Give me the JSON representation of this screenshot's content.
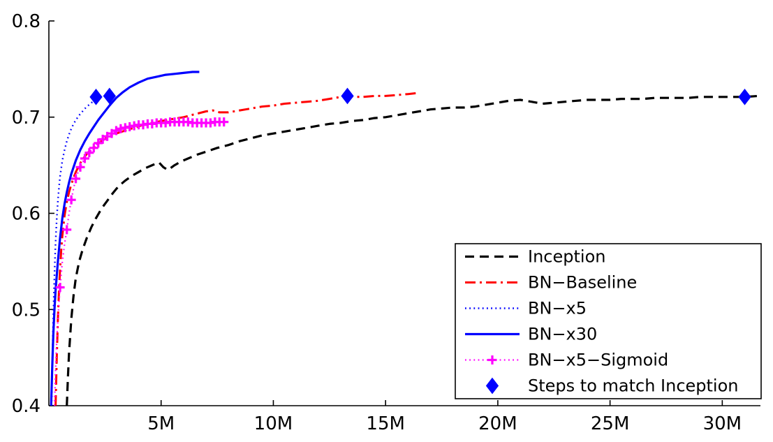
{
  "figure": {
    "background": "#ffffff",
    "text_color": "#000000",
    "axis_color": "#000000"
  },
  "chart_data": {
    "type": "line",
    "title": "",
    "xlabel": "",
    "ylabel": "",
    "xlim": [
      0,
      31.7
    ],
    "ylim": [
      0.4,
      0.8
    ],
    "grid": false,
    "xticks": [
      {
        "value": 5,
        "label": "5M"
      },
      {
        "value": 10,
        "label": "10M"
      },
      {
        "value": 15,
        "label": "15M"
      },
      {
        "value": 20,
        "label": "20M"
      },
      {
        "value": 25,
        "label": "25M"
      },
      {
        "value": 30,
        "label": "30M"
      }
    ],
    "yticks": [
      {
        "value": 0.4,
        "label": "0.4"
      },
      {
        "value": 0.5,
        "label": "0.5"
      },
      {
        "value": 0.6,
        "label": "0.6"
      },
      {
        "value": 0.7,
        "label": "0.7"
      },
      {
        "value": 0.8,
        "label": "0.8"
      }
    ],
    "legend": {
      "position": "bottom-right",
      "border_color": "#000000",
      "background": "#ffffff"
    },
    "series": [
      {
        "name": "Inception",
        "color": "#000000",
        "style": "dashed",
        "line_width": 3.2,
        "marker": null,
        "points": [
          [
            0.8,
            0.4
          ],
          [
            0.85,
            0.43
          ],
          [
            0.9,
            0.455
          ],
          [
            1.0,
            0.49
          ],
          [
            1.1,
            0.515
          ],
          [
            1.2,
            0.533
          ],
          [
            1.35,
            0.55
          ],
          [
            1.5,
            0.562
          ],
          [
            1.7,
            0.575
          ],
          [
            1.9,
            0.586
          ],
          [
            2.1,
            0.595
          ],
          [
            2.35,
            0.605
          ],
          [
            2.6,
            0.613
          ],
          [
            2.85,
            0.621
          ],
          [
            3.1,
            0.628
          ],
          [
            3.4,
            0.634
          ],
          [
            3.7,
            0.639
          ],
          [
            4.0,
            0.643
          ],
          [
            4.3,
            0.647
          ],
          [
            4.6,
            0.65
          ],
          [
            4.9,
            0.653
          ],
          [
            5.1,
            0.648
          ],
          [
            5.3,
            0.645
          ],
          [
            5.6,
            0.65
          ],
          [
            5.9,
            0.654
          ],
          [
            6.2,
            0.657
          ],
          [
            6.6,
            0.661
          ],
          [
            7.0,
            0.664
          ],
          [
            7.5,
            0.668
          ],
          [
            8.0,
            0.671
          ],
          [
            8.5,
            0.675
          ],
          [
            9.0,
            0.678
          ],
          [
            9.5,
            0.681
          ],
          [
            10.0,
            0.683
          ],
          [
            10.5,
            0.685
          ],
          [
            11.0,
            0.687
          ],
          [
            11.5,
            0.689
          ],
          [
            12.0,
            0.691
          ],
          [
            12.5,
            0.693
          ],
          [
            13.0,
            0.694
          ],
          [
            13.5,
            0.696
          ],
          [
            14.0,
            0.697
          ],
          [
            14.5,
            0.699
          ],
          [
            15.0,
            0.7
          ],
          [
            15.5,
            0.702
          ],
          [
            16.0,
            0.704
          ],
          [
            16.5,
            0.706
          ],
          [
            17.0,
            0.708
          ],
          [
            17.5,
            0.709
          ],
          [
            18.0,
            0.71
          ],
          [
            18.5,
            0.71
          ],
          [
            19.0,
            0.711
          ],
          [
            19.5,
            0.713
          ],
          [
            20.0,
            0.715
          ],
          [
            20.5,
            0.717
          ],
          [
            21.0,
            0.718
          ],
          [
            21.5,
            0.716
          ],
          [
            22.0,
            0.714
          ],
          [
            22.5,
            0.715
          ],
          [
            23.0,
            0.716
          ],
          [
            23.5,
            0.717
          ],
          [
            24.0,
            0.718
          ],
          [
            24.5,
            0.718
          ],
          [
            25.0,
            0.718
          ],
          [
            25.5,
            0.719
          ],
          [
            26.0,
            0.719
          ],
          [
            26.5,
            0.719
          ],
          [
            27.0,
            0.72
          ],
          [
            27.5,
            0.72
          ],
          [
            28.0,
            0.72
          ],
          [
            28.5,
            0.72
          ],
          [
            29.0,
            0.721
          ],
          [
            29.5,
            0.721
          ],
          [
            30.0,
            0.721
          ],
          [
            30.5,
            0.721
          ],
          [
            31.0,
            0.721
          ],
          [
            31.6,
            0.722
          ]
        ]
      },
      {
        "name": "BN−Baseline",
        "color": "#ff0000",
        "style": "dashdot",
        "line_width": 3,
        "marker": null,
        "points": [
          [
            0.3,
            0.4
          ],
          [
            0.35,
            0.45
          ],
          [
            0.4,
            0.49
          ],
          [
            0.45,
            0.52
          ],
          [
            0.5,
            0.543
          ],
          [
            0.55,
            0.562
          ],
          [
            0.6,
            0.577
          ],
          [
            0.7,
            0.598
          ],
          [
            0.8,
            0.612
          ],
          [
            0.9,
            0.622
          ],
          [
            1.0,
            0.63
          ],
          [
            1.1,
            0.637
          ],
          [
            1.2,
            0.643
          ],
          [
            1.35,
            0.65
          ],
          [
            1.5,
            0.656
          ],
          [
            1.7,
            0.662
          ],
          [
            1.9,
            0.667
          ],
          [
            2.1,
            0.671
          ],
          [
            2.4,
            0.676
          ],
          [
            2.7,
            0.68
          ],
          [
            3.0,
            0.683
          ],
          [
            3.4,
            0.686
          ],
          [
            3.8,
            0.689
          ],
          [
            4.2,
            0.692
          ],
          [
            4.6,
            0.694
          ],
          [
            5.0,
            0.696
          ],
          [
            5.5,
            0.698
          ],
          [
            6.0,
            0.7
          ],
          [
            6.5,
            0.703
          ],
          [
            7.0,
            0.706
          ],
          [
            7.3,
            0.707
          ],
          [
            7.6,
            0.705
          ],
          [
            8.0,
            0.705
          ],
          [
            8.5,
            0.707
          ],
          [
            9.0,
            0.709
          ],
          [
            9.5,
            0.711
          ],
          [
            10.0,
            0.712
          ],
          [
            10.5,
            0.714
          ],
          [
            11.0,
            0.715
          ],
          [
            11.5,
            0.716
          ],
          [
            12.0,
            0.717
          ],
          [
            12.5,
            0.719
          ],
          [
            13.0,
            0.721
          ],
          [
            13.3,
            0.722
          ],
          [
            13.7,
            0.721
          ],
          [
            14.0,
            0.721
          ],
          [
            14.5,
            0.722
          ],
          [
            15.0,
            0.722
          ],
          [
            15.5,
            0.723
          ],
          [
            16.0,
            0.724
          ],
          [
            16.4,
            0.725
          ]
        ]
      },
      {
        "name": "BN−x5",
        "color": "#0000ff",
        "style": "dotted",
        "line_width": 2.4,
        "marker": null,
        "points": [
          [
            0.12,
            0.4
          ],
          [
            0.15,
            0.44
          ],
          [
            0.18,
            0.475
          ],
          [
            0.22,
            0.515
          ],
          [
            0.26,
            0.545
          ],
          [
            0.3,
            0.57
          ],
          [
            0.35,
            0.595
          ],
          [
            0.4,
            0.613
          ],
          [
            0.45,
            0.627
          ],
          [
            0.5,
            0.639
          ],
          [
            0.6,
            0.655
          ],
          [
            0.7,
            0.666
          ],
          [
            0.8,
            0.675
          ],
          [
            0.9,
            0.682
          ],
          [
            1.0,
            0.688
          ],
          [
            1.1,
            0.693
          ],
          [
            1.2,
            0.697
          ],
          [
            1.35,
            0.702
          ],
          [
            1.5,
            0.706
          ],
          [
            1.65,
            0.71
          ],
          [
            1.8,
            0.713
          ],
          [
            1.95,
            0.716
          ],
          [
            2.1,
            0.719
          ],
          [
            2.2,
            0.721
          ]
        ]
      },
      {
        "name": "BN−x30",
        "color": "#0000ff",
        "style": "solid",
        "line_width": 3.2,
        "marker": null,
        "points": [
          [
            0.1,
            0.4
          ],
          [
            0.15,
            0.44
          ],
          [
            0.2,
            0.475
          ],
          [
            0.25,
            0.5
          ],
          [
            0.3,
            0.52
          ],
          [
            0.4,
            0.55
          ],
          [
            0.5,
            0.575
          ],
          [
            0.6,
            0.595
          ],
          [
            0.7,
            0.61
          ],
          [
            0.8,
            0.622
          ],
          [
            0.9,
            0.632
          ],
          [
            1.0,
            0.641
          ],
          [
            1.2,
            0.655
          ],
          [
            1.4,
            0.666
          ],
          [
            1.6,
            0.675
          ],
          [
            1.8,
            0.683
          ],
          [
            2.0,
            0.69
          ],
          [
            2.2,
            0.697
          ],
          [
            2.4,
            0.703
          ],
          [
            2.7,
            0.712
          ],
          [
            3.0,
            0.72
          ],
          [
            3.3,
            0.726
          ],
          [
            3.6,
            0.731
          ],
          [
            4.0,
            0.736
          ],
          [
            4.4,
            0.74
          ],
          [
            4.8,
            0.742
          ],
          [
            5.2,
            0.744
          ],
          [
            5.6,
            0.745
          ],
          [
            6.0,
            0.746
          ],
          [
            6.4,
            0.747
          ],
          [
            6.7,
            0.747
          ]
        ]
      },
      {
        "name": "BN−x5−Sigmoid",
        "color": "#ff00ff",
        "style": "dotted",
        "line_width": 2.2,
        "marker": "plus",
        "points": [
          [
            0.25,
            0.4
          ],
          [
            0.3,
            0.437
          ],
          [
            0.35,
            0.468
          ],
          [
            0.4,
            0.49
          ],
          [
            0.45,
            0.508
          ],
          [
            0.5,
            0.523
          ],
          [
            0.55,
            0.537
          ],
          [
            0.6,
            0.55
          ],
          [
            0.7,
            0.568
          ],
          [
            0.8,
            0.583
          ],
          [
            0.9,
            0.6
          ],
          [
            1.0,
            0.614
          ],
          [
            1.1,
            0.626
          ],
          [
            1.2,
            0.636
          ],
          [
            1.3,
            0.643
          ],
          [
            1.4,
            0.648
          ],
          [
            1.5,
            0.653
          ],
          [
            1.6,
            0.657
          ],
          [
            1.7,
            0.66
          ],
          [
            1.8,
            0.663
          ],
          [
            1.9,
            0.666
          ],
          [
            2.0,
            0.668
          ],
          [
            2.2,
            0.673
          ],
          [
            2.4,
            0.677
          ],
          [
            2.6,
            0.68
          ],
          [
            2.8,
            0.683
          ],
          [
            3.0,
            0.686
          ],
          [
            3.2,
            0.688
          ],
          [
            3.4,
            0.689
          ],
          [
            3.6,
            0.69
          ],
          [
            3.8,
            0.691
          ],
          [
            4.0,
            0.692
          ],
          [
            4.2,
            0.692
          ],
          [
            4.4,
            0.693
          ],
          [
            4.6,
            0.693
          ],
          [
            4.8,
            0.694
          ],
          [
            5.0,
            0.694
          ],
          [
            5.2,
            0.694
          ],
          [
            5.4,
            0.695
          ],
          [
            5.6,
            0.695
          ],
          [
            5.8,
            0.695
          ],
          [
            6.0,
            0.695
          ],
          [
            6.2,
            0.695
          ],
          [
            6.4,
            0.694
          ],
          [
            6.6,
            0.694
          ],
          [
            6.8,
            0.694
          ],
          [
            7.0,
            0.694
          ],
          [
            7.2,
            0.694
          ],
          [
            7.4,
            0.695
          ],
          [
            7.6,
            0.695
          ],
          [
            7.9,
            0.695
          ]
        ],
        "marker_points": [
          [
            0.5,
            0.523
          ],
          [
            0.8,
            0.583
          ],
          [
            1.0,
            0.614
          ],
          [
            1.2,
            0.636
          ],
          [
            1.4,
            0.648
          ],
          [
            1.6,
            0.657
          ],
          [
            1.8,
            0.663
          ],
          [
            2.0,
            0.668
          ],
          [
            2.2,
            0.673
          ],
          [
            2.4,
            0.677
          ],
          [
            2.6,
            0.68
          ],
          [
            2.8,
            0.683
          ],
          [
            3.0,
            0.686
          ],
          [
            3.2,
            0.688
          ],
          [
            3.4,
            0.689
          ],
          [
            3.6,
            0.69
          ],
          [
            3.8,
            0.691
          ],
          [
            4.0,
            0.692
          ],
          [
            4.2,
            0.692
          ],
          [
            4.4,
            0.693
          ],
          [
            4.6,
            0.693
          ],
          [
            4.8,
            0.694
          ],
          [
            5.0,
            0.694
          ],
          [
            5.2,
            0.694
          ],
          [
            5.4,
            0.695
          ],
          [
            5.6,
            0.695
          ],
          [
            5.8,
            0.695
          ],
          [
            6.0,
            0.695
          ],
          [
            6.2,
            0.695
          ],
          [
            6.4,
            0.694
          ],
          [
            6.6,
            0.694
          ],
          [
            6.8,
            0.694
          ],
          [
            7.0,
            0.694
          ],
          [
            7.2,
            0.694
          ],
          [
            7.4,
            0.695
          ],
          [
            7.6,
            0.695
          ],
          [
            7.8,
            0.695
          ]
        ]
      },
      {
        "name": "Steps to match Inception",
        "color": "#0000ff",
        "style": "none",
        "line_width": 0,
        "marker": "diamond",
        "points": [
          [
            2.1,
            0.721
          ],
          [
            2.7,
            0.722
          ],
          [
            13.3,
            0.722
          ],
          [
            31.0,
            0.721
          ]
        ]
      }
    ]
  }
}
